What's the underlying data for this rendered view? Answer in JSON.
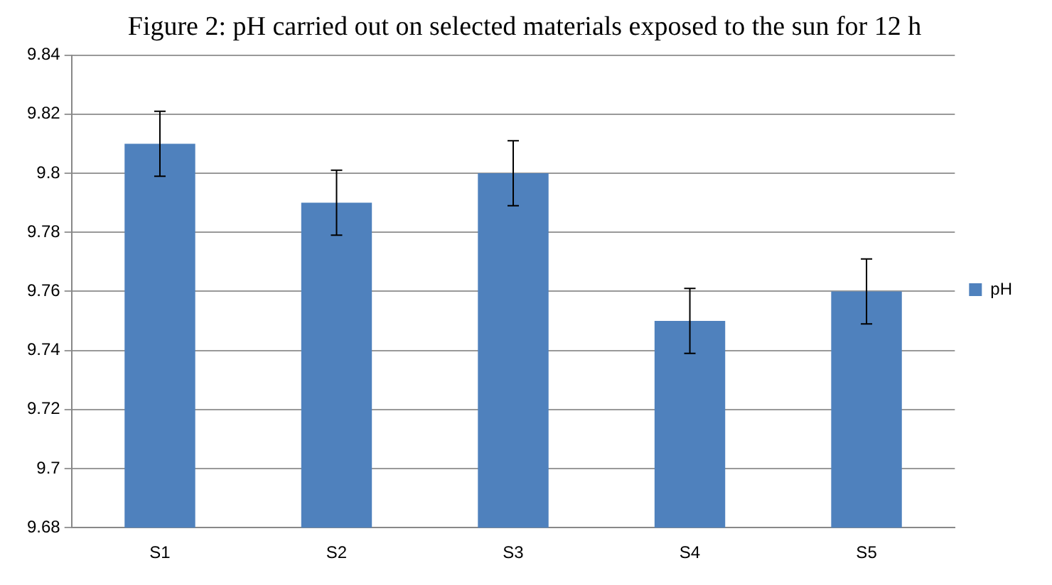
{
  "chart_data": {
    "type": "bar",
    "title": "Figure 2: pH carried out on selected materials exposed to the sun for 12 h",
    "categories": [
      "S1",
      "S2",
      "S3",
      "S4",
      "S5"
    ],
    "series": [
      {
        "name": "pH",
        "color": "#4f81bd",
        "values": [
          9.81,
          9.79,
          9.8,
          9.75,
          9.76
        ],
        "errors": [
          0.011,
          0.011,
          0.011,
          0.011,
          0.011
        ]
      }
    ],
    "ylim": [
      9.68,
      9.84
    ],
    "yticks": [
      9.68,
      9.7,
      9.72,
      9.74,
      9.76,
      9.78,
      9.8,
      9.82,
      9.84
    ],
    "grid": "y",
    "legend": "right"
  }
}
